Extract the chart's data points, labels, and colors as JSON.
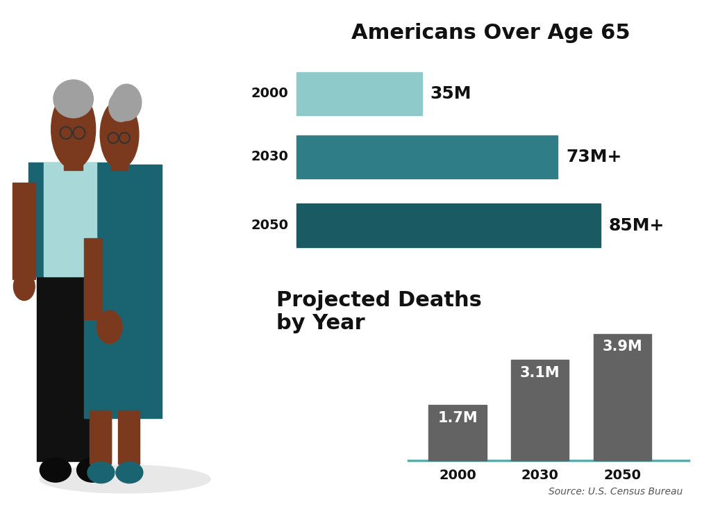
{
  "title1": "Americans Over Age 65",
  "title2": "Projected Deaths\nby Year",
  "source": "Source: U.S. Census Bureau",
  "age_years": [
    "2000",
    "2030",
    "2050"
  ],
  "age_values": [
    35,
    73,
    85
  ],
  "age_labels": [
    "35M",
    "73M+",
    "85M+"
  ],
  "age_colors": [
    "#8ECAC9",
    "#2E7D87",
    "#1A5A63"
  ],
  "deaths_years": [
    "2000",
    "2030",
    "2050"
  ],
  "deaths_values": [
    1.7,
    3.1,
    3.9
  ],
  "deaths_labels": [
    "1.7M",
    "3.1M",
    "3.9M"
  ],
  "deaths_color": "#636363",
  "bg_color": "#FFFFFF",
  "title_fontsize": 22,
  "label_fontsize": 15,
  "year_fontsize": 13,
  "source_fontsize": 10,
  "axis_line_color": "#5AABAA",
  "skin_color": "#7B3A1E",
  "teal_dark": "#1A6472",
  "teal_light": "#A8D8D8",
  "black": "#111111",
  "gray_hair": "#A0A0A0"
}
